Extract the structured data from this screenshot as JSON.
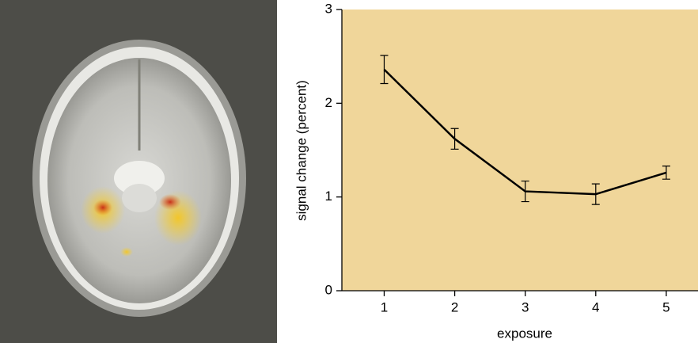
{
  "chart_data": {
    "type": "line",
    "x_label": "exposure",
    "y_label": "signal change (percent)",
    "x": [
      1,
      2,
      3,
      4,
      5
    ],
    "values": [
      2.36,
      1.62,
      1.06,
      1.03,
      1.26
    ],
    "errors": [
      0.15,
      0.11,
      0.11,
      0.11,
      0.07
    ],
    "color": "#000000",
    "xlim": [
      0.4,
      5.45
    ],
    "xticks": [
      1,
      2,
      3,
      4,
      5
    ],
    "ylim": [
      0,
      3
    ],
    "yticks": [
      0,
      1,
      2,
      3
    ]
  }
}
